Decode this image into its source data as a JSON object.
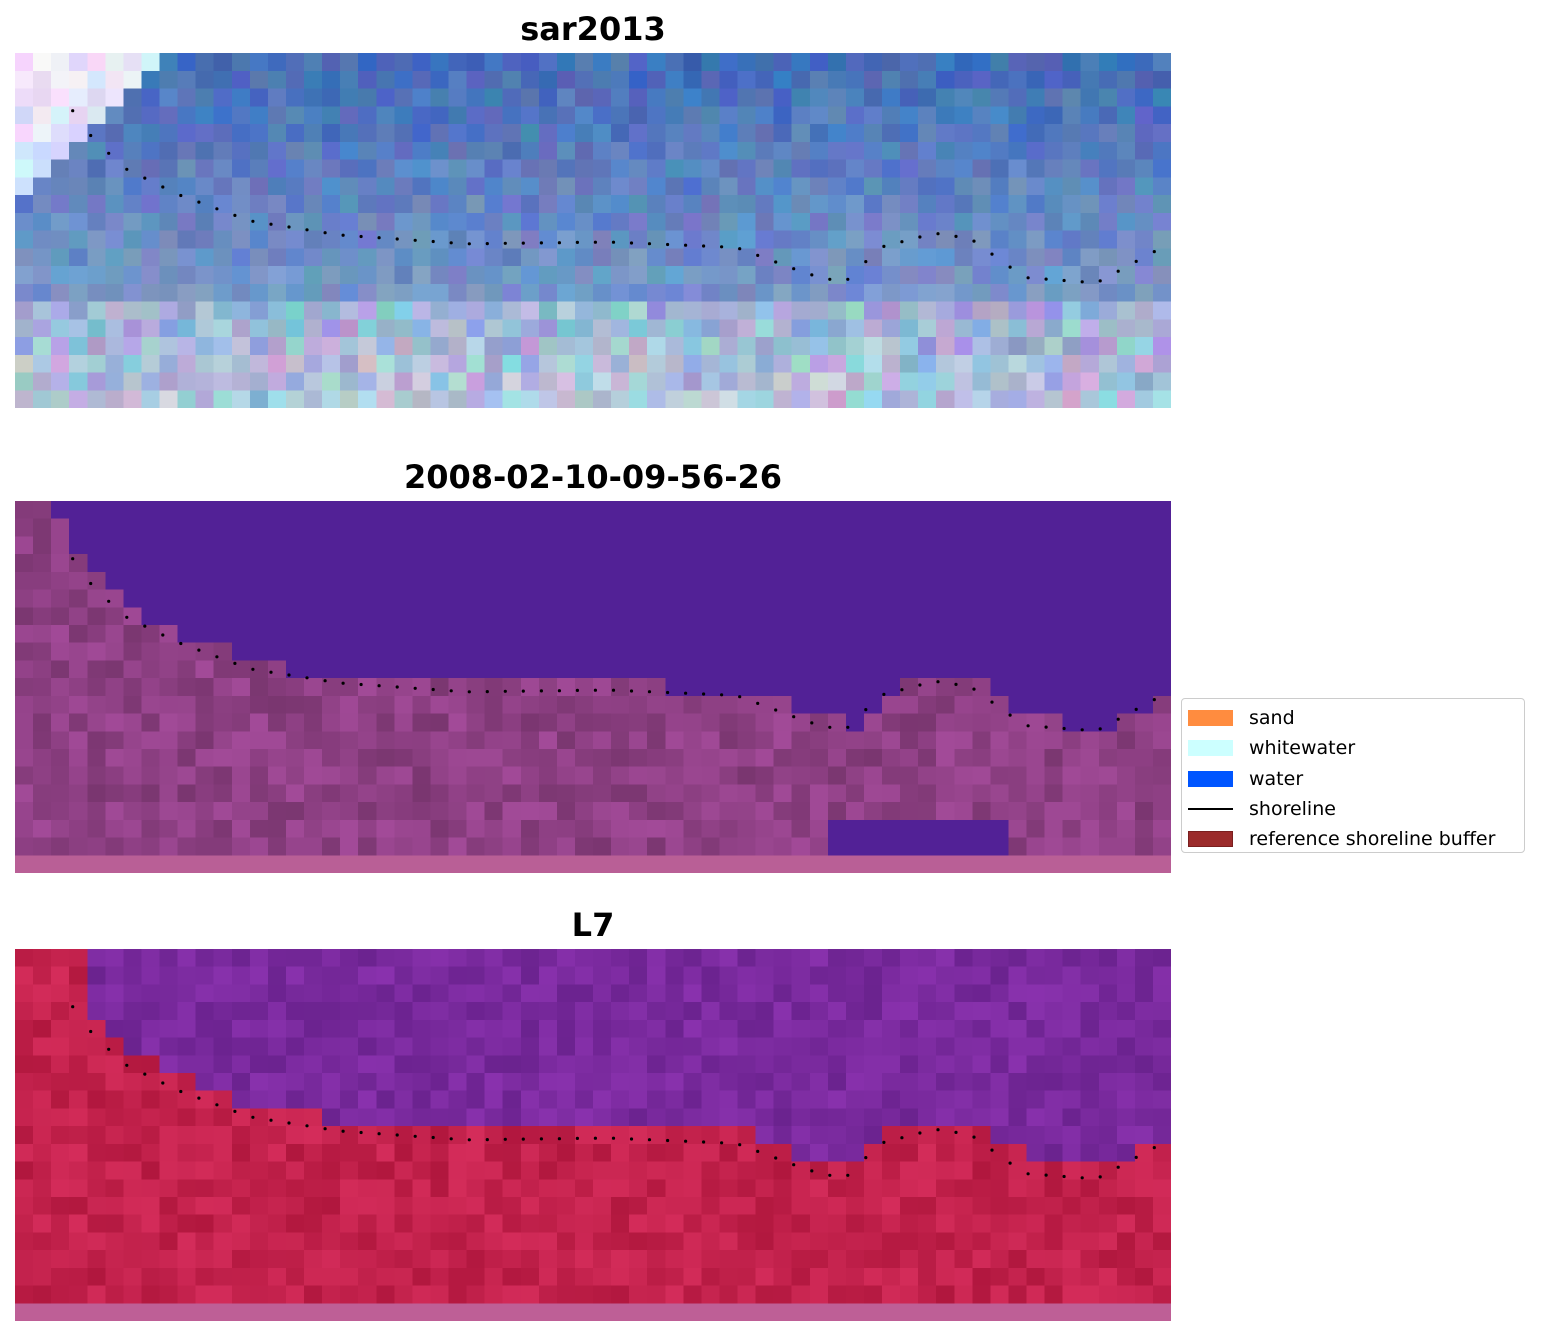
{
  "panels": [
    {
      "title": "sar2013",
      "style": "rgb"
    },
    {
      "title": "2008-02-10-09-56-26",
      "style": "classified"
    },
    {
      "title": "L7",
      "style": "index"
    }
  ],
  "legend": {
    "items": [
      {
        "label": "sand",
        "type": "patch",
        "color": "#ff8c3f",
        "edge": ""
      },
      {
        "label": "whitewater",
        "type": "patch",
        "color": "#ccffff",
        "edge": ""
      },
      {
        "label": "water",
        "type": "patch",
        "color": "#0055ff",
        "edge": ""
      },
      {
        "label": "shoreline",
        "type": "line",
        "color": "#000000",
        "edge": ""
      },
      {
        "label": "reference shoreline buffer",
        "type": "patch",
        "color": "#9b2b2b",
        "edge": "#7a1f1f"
      }
    ]
  },
  "colors": {
    "ocean_rgb": "#3f69b4",
    "water_class": "#522196",
    "land_class": "#a24a8e",
    "index_water": "#7a2a9e",
    "index_land": "#c0204a",
    "shoreline_dots": "#000000"
  }
}
